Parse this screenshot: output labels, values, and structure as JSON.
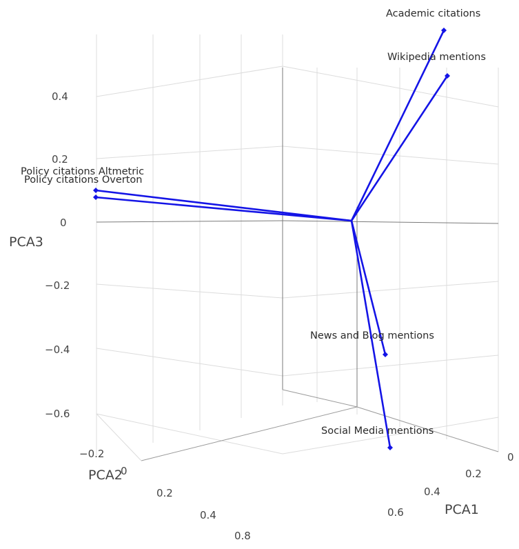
{
  "chart_data": {
    "type": "3d-vector",
    "axes": {
      "x": {
        "title": "PCA1",
        "ticks": [
          "0",
          "0.2",
          "0.4",
          "0.6"
        ]
      },
      "y": {
        "title": "PCA2",
        "ticks": [
          "−0.2",
          "0",
          "0.2",
          "0.4",
          "0.8"
        ]
      },
      "z": {
        "title": "PCA3",
        "ticks": [
          "0.4",
          "0.2",
          "0",
          "−0.2",
          "−0.4",
          "−0.6"
        ]
      }
    },
    "grid": true,
    "line_color": "#1414e6",
    "series": [
      {
        "name": "Academic citations",
        "pca3": 0.63
      },
      {
        "name": "Wikipedia mentions",
        "pca3": 0.47
      },
      {
        "name": "Policy citations Altmetric",
        "pca3": 0.1
      },
      {
        "name": "Policy citations Overton",
        "pca3": 0.08
      },
      {
        "name": "News and Blog mentions",
        "pca3": -0.43
      },
      {
        "name": "Social Media mentions",
        "pca3": -0.71
      }
    ]
  }
}
